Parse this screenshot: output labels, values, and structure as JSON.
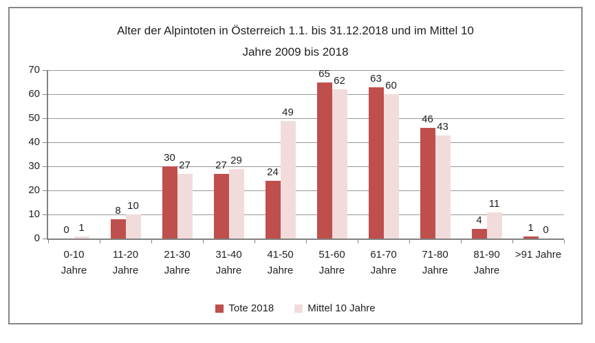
{
  "title": {
    "line1": "Alter der Alpintoten in Österreich 1.1. bis 31.12.2018 und im Mittel 10",
    "line2": "Jahre 2009 bis 2018"
  },
  "chart_data": {
    "type": "bar",
    "title": "Alter der Alpintoten in Österreich 1.1. bis 31.12.2018 und im Mittel 10 Jahre 2009 bis 2018",
    "categories": [
      "0-10 Jahre",
      "11-20 Jahre",
      "21-30 Jahre",
      "31-40 Jahre",
      "41-50 Jahre",
      "51-60 Jahre",
      "61-70 Jahre",
      "71-80 Jahre",
      "81-90 Jahre",
      ">91 Jahre"
    ],
    "category_label_lines": [
      [
        "0-10",
        "Jahre"
      ],
      [
        "11-20",
        "Jahre"
      ],
      [
        "21-30",
        "Jahre"
      ],
      [
        "31-40",
        "Jahre"
      ],
      [
        "41-50",
        "Jahre"
      ],
      [
        "51-60",
        "Jahre"
      ],
      [
        "61-70",
        "Jahre"
      ],
      [
        "71-80",
        "Jahre"
      ],
      [
        "81-90",
        "Jahre"
      ],
      [
        ">91 Jahre"
      ]
    ],
    "series": [
      {
        "name": "Tote 2018",
        "color": "#BF4F4C",
        "values": [
          0,
          8,
          30,
          27,
          24,
          65,
          63,
          46,
          4,
          1
        ]
      },
      {
        "name": "Mittel 10 Jahre",
        "color": "#F2DCDB",
        "values": [
          1,
          10,
          27,
          29,
          49,
          62,
          60,
          43,
          11,
          0
        ]
      }
    ],
    "xlabel": "",
    "ylabel": "",
    "ylim": [
      0,
      70
    ],
    "ytick_step": 10,
    "grid": true,
    "data_labels": true,
    "legend_position": "bottom"
  },
  "colors": {
    "series1": "#BF4F4C",
    "series2": "#F2DCDB",
    "gridline": "#969696",
    "axis": "#808080",
    "frame_border": "#868686",
    "text": "#1f1f1f",
    "background": "#ffffff"
  }
}
